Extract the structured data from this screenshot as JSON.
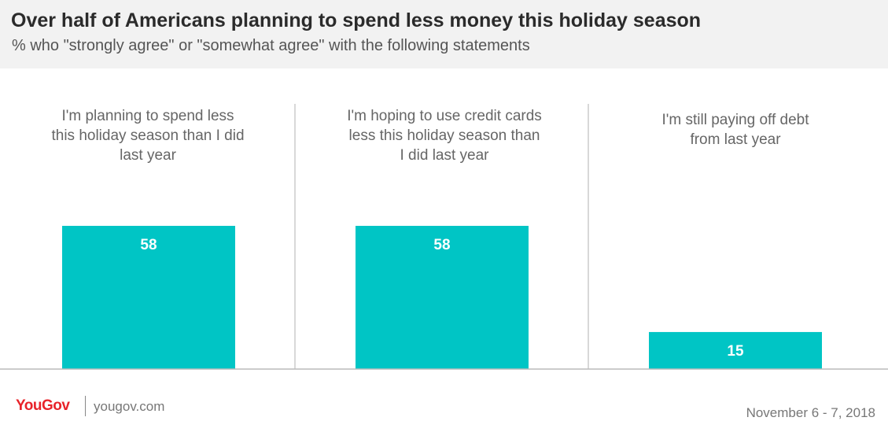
{
  "header": {
    "title": "Over half of Americans planning to spend less money this holiday season",
    "subtitle": "% who \"strongly agree\" or \"somewhat agree\" with the following statements"
  },
  "chart_data": {
    "type": "bar",
    "categories": [
      "I'm planning to spend less this holiday season than I did last year",
      "I'm hoping to use credit cards less this holiday season than I did last year",
      "I'm still paying off debt from last year"
    ],
    "values": [
      58,
      58,
      15
    ],
    "ylim": [
      0,
      58
    ],
    "bar_color": "#00c5c5",
    "grid": false
  },
  "footer": {
    "brand": "YouGov",
    "url": "yougov.com",
    "date": "November 6 - 7, 2018"
  },
  "colors": {
    "brand": "#e8232a",
    "bar": "#00c5c5",
    "header_bg": "#f2f2f2"
  }
}
